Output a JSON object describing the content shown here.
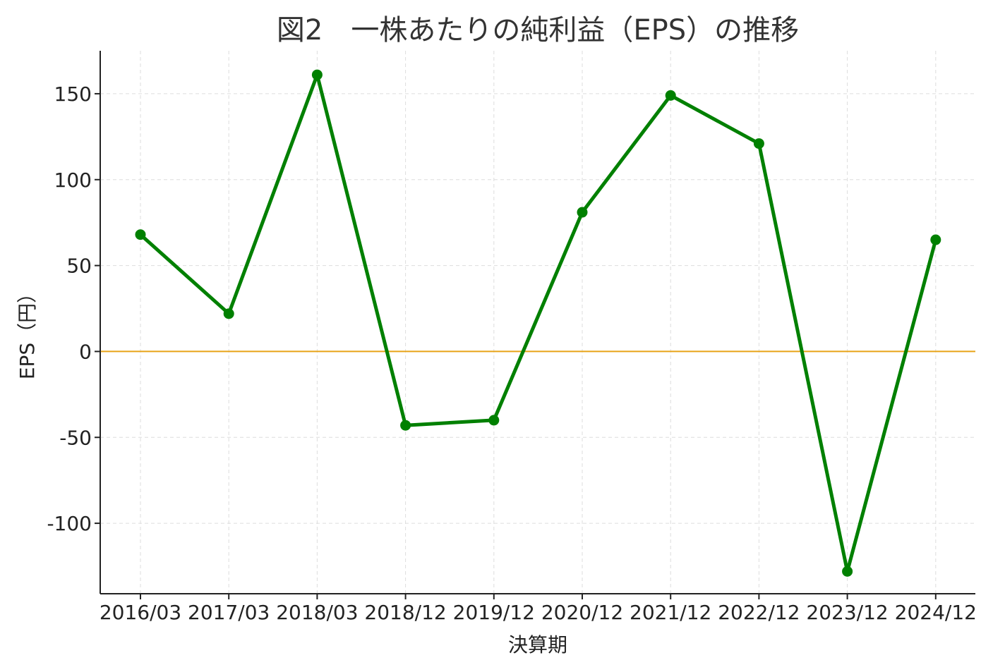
{
  "chart_data": {
    "type": "line",
    "title": "図2　一株あたりの純利益（EPS）の推移",
    "xlabel": "決算期",
    "ylabel": "EPS（円）",
    "categories": [
      "2016/03",
      "2017/03",
      "2018/03",
      "2018/12",
      "2019/12",
      "2020/12",
      "2021/12",
      "2022/12",
      "2023/12",
      "2024/12"
    ],
    "series": [
      {
        "values": [
          68,
          22,
          161,
          -43,
          -40,
          81,
          149,
          121,
          -128,
          65
        ],
        "color": "#008000"
      }
    ],
    "yticks": [
      -100,
      -50,
      0,
      50,
      100,
      150
    ],
    "ylim": [
      -141,
      175
    ],
    "zero_line_color": "#E8A317",
    "grid": true,
    "legend": "none"
  }
}
